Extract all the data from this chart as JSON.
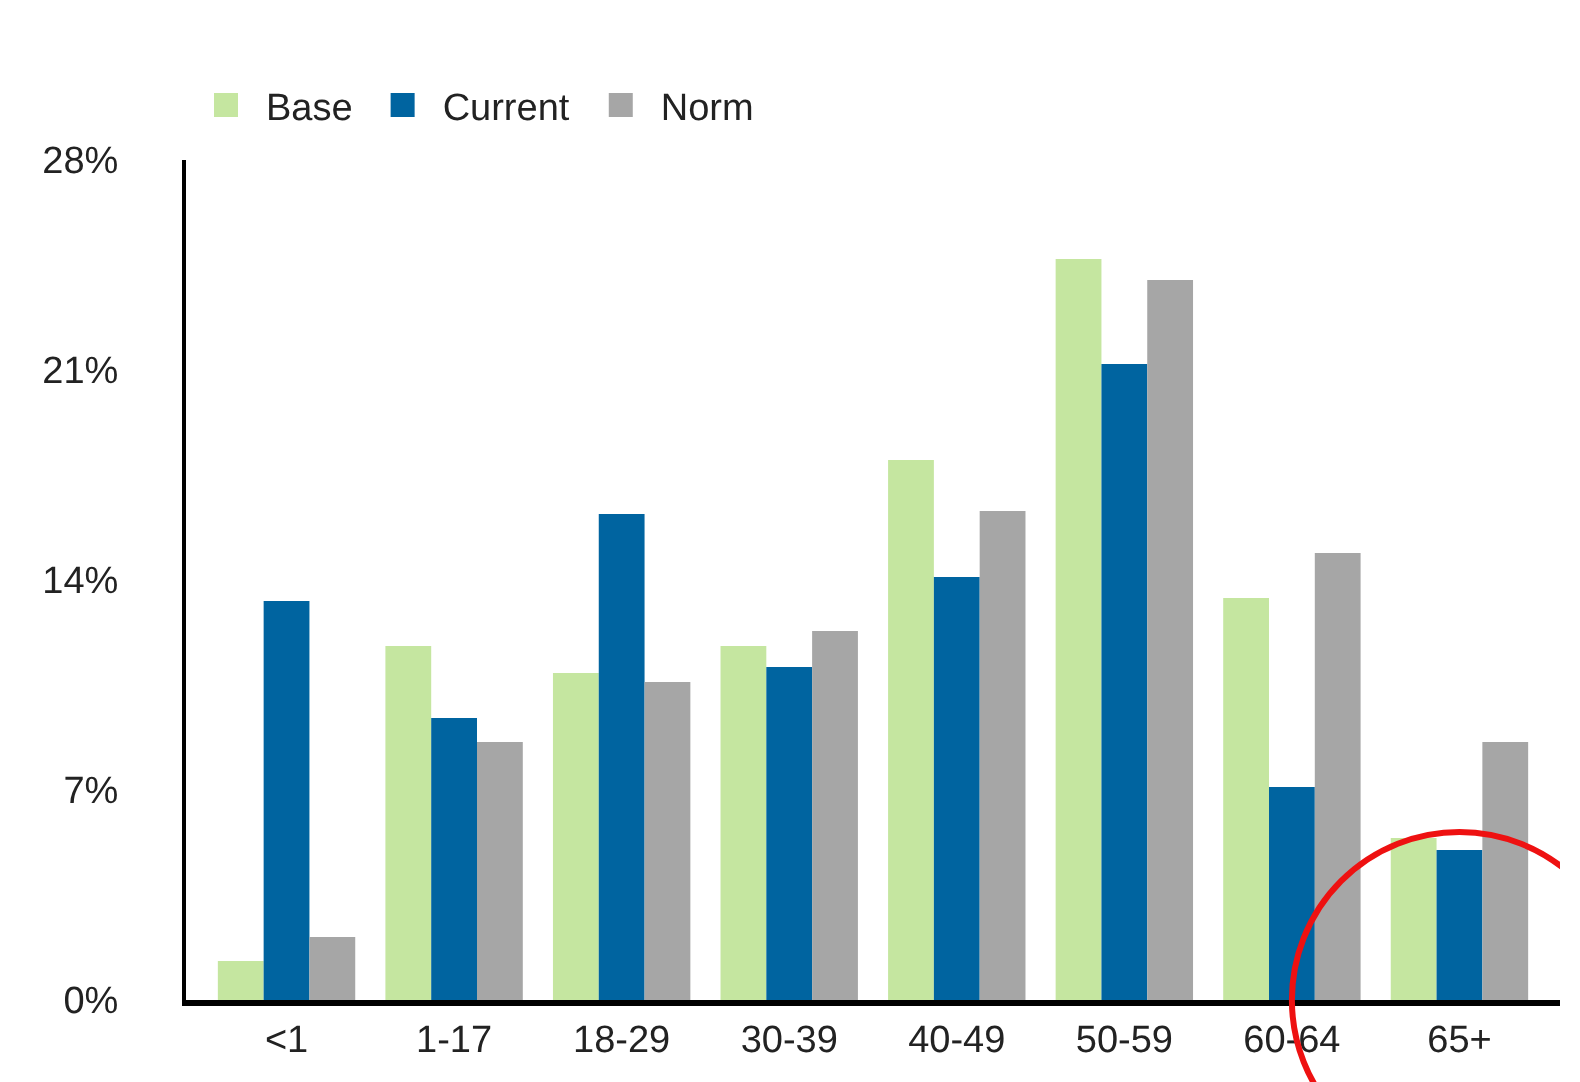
{
  "chart_data": {
    "type": "bar",
    "categories": [
      "<1",
      "1-17",
      "18-29",
      "30-39",
      "40-49",
      "50-59",
      "60-64",
      "65+"
    ],
    "series": [
      {
        "name": "Base",
        "color": "#c5e6a0",
        "values": [
          1.3,
          11.8,
          10.9,
          11.8,
          18.0,
          24.7,
          13.4,
          5.4
        ]
      },
      {
        "name": "Current",
        "color": "#0064a0",
        "values": [
          13.3,
          9.4,
          16.2,
          11.1,
          14.1,
          21.2,
          7.1,
          5.0
        ]
      },
      {
        "name": "Norm",
        "color": "#a6a6a6",
        "values": [
          2.1,
          8.6,
          10.6,
          12.3,
          16.3,
          24.0,
          14.9,
          8.6
        ]
      }
    ],
    "ylim": [
      0,
      28
    ],
    "yticks": [
      {
        "value": 0,
        "label": "0%"
      },
      {
        "value": 7,
        "label": "7%"
      },
      {
        "value": 14,
        "label": "14%"
      },
      {
        "value": 21,
        "label": "21%"
      },
      {
        "value": 28,
        "label": "28%"
      }
    ],
    "legend": "top left"
  }
}
